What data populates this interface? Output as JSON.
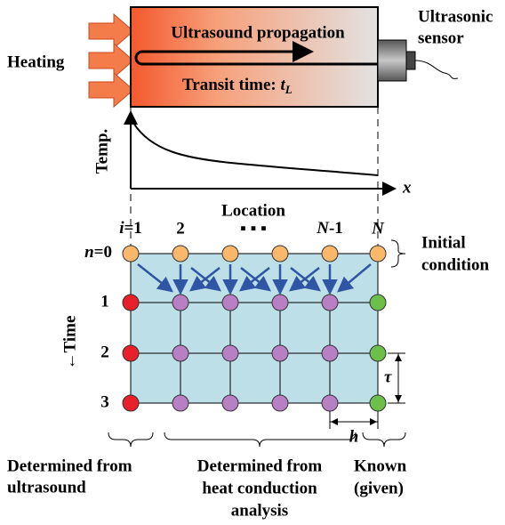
{
  "top": {
    "heating": "Heating",
    "propagation": "Ultrasound propagation",
    "transit": "Transit time: ",
    "transit_var": "t",
    "transit_sub": "L",
    "sensor_line1": "Ultrasonic",
    "sensor_line2": "sensor"
  },
  "plot": {
    "y_label": "Temp.",
    "x_label": "x",
    "location": "Location",
    "ellipsis": "▪ ▪ ▪"
  },
  "columns": {
    "first_var": "i",
    "first_rest": "=1",
    "second": "2",
    "prev_var": "N",
    "prev_rest": "-1",
    "last": "N"
  },
  "rows": {
    "first_var": "n",
    "first_rest": "=0",
    "r1": "1",
    "r2": "2",
    "r3": "3",
    "time": "←Time"
  },
  "annotations": {
    "initial_line1": "Initial",
    "initial_line2": "condition",
    "tau": "τ",
    "h": "h"
  },
  "bottom": {
    "left_line1": "Determined from",
    "left_line2": "ultrasound",
    "mid_line1": "Determined from",
    "mid_line2": "heat conduction",
    "mid_line3": "analysis",
    "right_line1": "Known",
    "right_line2": "(given)"
  }
}
